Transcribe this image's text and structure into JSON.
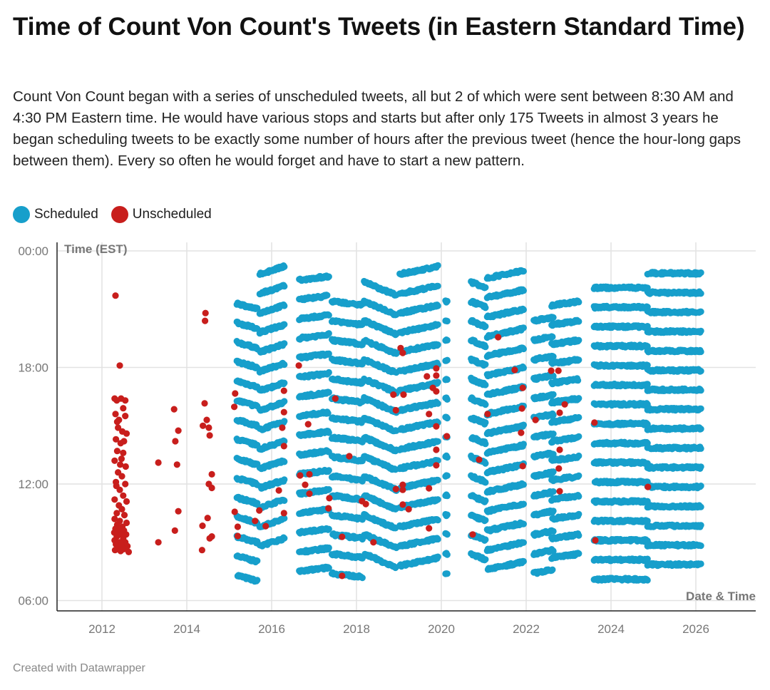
{
  "title": "Time of Count Von Count's Tweets (in Eastern Standard Time)",
  "subtitle": "Count Von Count began with a series of unscheduled tweets, all but 2 of which were sent between 8:30 AM and 4:30 PM Eastern time. He would have various stops and starts but after only 175 Tweets in almost 3 years he began scheduling tweets to be exactly some number of hours after the previous tweet (hence the hour-long gaps between them). Every so often he would forget and have to start a new pattern.",
  "footer": "Created with Datawrapper",
  "colors": {
    "scheduled": "#179fcb",
    "unscheduled": "#c81e1c",
    "grid": "#e2e2e2",
    "axis": "#222222",
    "label": "#777777"
  },
  "chart_data": {
    "type": "scatter",
    "xlabel": "Date & Time",
    "ylabel": "Time (EST)",
    "xlim": [
      2010.95,
      2027.45
    ],
    "ylim": [
      5.45,
      24
    ],
    "x_ticks": [
      {
        "value": 2012,
        "label": "2012"
      },
      {
        "value": 2014,
        "label": "2014"
      },
      {
        "value": 2016,
        "label": "2016"
      },
      {
        "value": 2018,
        "label": "2018"
      },
      {
        "value": 2020,
        "label": "2020"
      },
      {
        "value": 2022,
        "label": "2022"
      },
      {
        "value": 2024,
        "label": "2024"
      },
      {
        "value": 2026,
        "label": "2026"
      }
    ],
    "y_ticks": [
      {
        "value": 24,
        "label": "00:00"
      },
      {
        "value": 18,
        "label": "18:00"
      },
      {
        "value": 12,
        "label": "12:00"
      },
      {
        "value": 6,
        "label": "06:00"
      }
    ],
    "grid": true,
    "legend": {
      "placement": "top-left",
      "entries": [
        {
          "name": "Scheduled",
          "key": "scheduled"
        },
        {
          "name": "Unscheduled",
          "key": "unscheduled"
        }
      ]
    },
    "scheduled_blocks_note": "Scheduled tweets form hourly rows: each block spans [start,end] years with rows every hour from min_hour to max_hour; drift = hour change across the block",
    "scheduled_blocks": [
      {
        "start": 2015.18,
        "end": 2015.66,
        "min_hour": 7.3,
        "max_hour": 21.3,
        "drift": -0.3
      },
      {
        "start": 2015.72,
        "end": 2016.3,
        "min_hour": 8.8,
        "max_hour": 22.8,
        "drift": 0.4
      },
      {
        "start": 2016.65,
        "end": 2017.36,
        "min_hour": 7.5,
        "max_hour": 22.5,
        "drift": 0.2
      },
      {
        "start": 2017.42,
        "end": 2018.15,
        "min_hour": 7.4,
        "max_hour": 21.4,
        "drift": -0.2
      },
      {
        "start": 2018.18,
        "end": 2018.95,
        "min_hour": 8.4,
        "max_hour": 22.4,
        "drift": -0.7
      },
      {
        "start": 2019.02,
        "end": 2019.93,
        "min_hour": 7.8,
        "max_hour": 22.8,
        "drift": 0.4
      },
      {
        "start": 2020.1,
        "end": 2020.15,
        "min_hour": 7.4,
        "max_hour": 21.4,
        "drift": 0
      },
      {
        "start": 2020.7,
        "end": 2021.05,
        "min_hour": 8.4,
        "max_hour": 22.4,
        "drift": -0.3
      },
      {
        "start": 2021.08,
        "end": 2021.95,
        "min_hour": 7.6,
        "max_hour": 22.6,
        "drift": 0.4
      },
      {
        "start": 2022.18,
        "end": 2022.65,
        "min_hour": 7.4,
        "max_hour": 21.3,
        "drift": 0.2
      },
      {
        "start": 2022.6,
        "end": 2023.25,
        "min_hour": 8.2,
        "max_hour": 22.1,
        "drift": 0.2
      },
      {
        "start": 2023.6,
        "end": 2024.86,
        "min_hour": 7.1,
        "max_hour": 22.1,
        "drift": 0
      },
      {
        "start": 2024.86,
        "end": 2026.12,
        "min_hour": 7.85,
        "max_hour": 22.9,
        "drift": 0
      }
    ],
    "unscheduled": [
      [
        2012.32,
        21.7
      ],
      [
        2012.42,
        18.1
      ],
      [
        2012.3,
        16.4
      ],
      [
        2012.35,
        16.3
      ],
      [
        2012.45,
        16.4
      ],
      [
        2012.55,
        16.3
      ],
      [
        2012.5,
        15.9
      ],
      [
        2012.32,
        15.6
      ],
      [
        2012.4,
        15.3
      ],
      [
        2012.55,
        15.5
      ],
      [
        2012.38,
        14.9
      ],
      [
        2012.48,
        14.7
      ],
      [
        2012.58,
        14.6
      ],
      [
        2012.33,
        14.3
      ],
      [
        2012.44,
        14.1
      ],
      [
        2012.52,
        14.2
      ],
      [
        2012.36,
        13.7
      ],
      [
        2012.5,
        13.6
      ],
      [
        2012.3,
        13.2
      ],
      [
        2012.43,
        13.0
      ],
      [
        2012.56,
        12.9
      ],
      [
        2012.38,
        12.6
      ],
      [
        2012.47,
        12.4
      ],
      [
        2012.33,
        12.1
      ],
      [
        2012.55,
        12.0
      ],
      [
        2012.42,
        11.7
      ],
      [
        2012.5,
        11.4
      ],
      [
        2012.3,
        11.2
      ],
      [
        2012.58,
        11.1
      ],
      [
        2012.4,
        10.9
      ],
      [
        2012.47,
        10.7
      ],
      [
        2012.35,
        10.5
      ],
      [
        2012.53,
        10.4
      ],
      [
        2012.3,
        10.2
      ],
      [
        2012.42,
        10.1
      ],
      [
        2012.58,
        10.0
      ],
      [
        2012.36,
        9.9
      ],
      [
        2012.48,
        9.8
      ],
      [
        2012.32,
        9.7
      ],
      [
        2012.4,
        9.6
      ],
      [
        2012.52,
        9.6
      ],
      [
        2012.29,
        9.5
      ],
      [
        2012.45,
        9.4
      ],
      [
        2012.57,
        9.4
      ],
      [
        2012.35,
        9.3
      ],
      [
        2012.5,
        9.2
      ],
      [
        2012.3,
        9.1
      ],
      [
        2012.41,
        9.0
      ],
      [
        2012.55,
        9.0
      ],
      [
        2012.33,
        8.9
      ],
      [
        2012.46,
        8.85
      ],
      [
        2012.6,
        8.8
      ],
      [
        2012.38,
        8.7
      ],
      [
        2012.52,
        8.65
      ],
      [
        2012.31,
        8.6
      ],
      [
        2012.44,
        8.55
      ],
      [
        2012.63,
        8.5
      ],
      [
        2012.36,
        15.2
      ],
      [
        2012.46,
        13.3
      ],
      [
        2012.34,
        11.9
      ],
      [
        2013.33,
        13.1
      ],
      [
        2013.33,
        9.0
      ],
      [
        2013.7,
        15.85
      ],
      [
        2013.73,
        14.2
      ],
      [
        2013.72,
        9.6
      ],
      [
        2013.77,
        13.0
      ],
      [
        2013.8,
        10.6
      ],
      [
        2013.8,
        14.75
      ],
      [
        2014.44,
        20.8
      ],
      [
        2014.43,
        20.4
      ],
      [
        2014.42,
        16.15
      ],
      [
        2014.38,
        15.0
      ],
      [
        2014.47,
        15.3
      ],
      [
        2014.52,
        14.9
      ],
      [
        2014.54,
        14.5
      ],
      [
        2014.37,
        9.85
      ],
      [
        2014.49,
        10.25
      ],
      [
        2014.36,
        8.6
      ],
      [
        2014.59,
        12.5
      ],
      [
        2014.52,
        12.0
      ],
      [
        2014.59,
        11.8
      ],
      [
        2014.59,
        9.3
      ],
      [
        2014.54,
        9.2
      ],
      [
        2015.14,
        16.66
      ],
      [
        2015.12,
        15.97
      ],
      [
        2015.13,
        10.57
      ],
      [
        2015.2,
        9.8
      ],
      [
        2015.2,
        9.32
      ],
      [
        2015.61,
        10.1
      ],
      [
        2015.71,
        10.64
      ],
      [
        2015.86,
        9.83
      ],
      [
        2016.17,
        11.67
      ],
      [
        2016.29,
        16.8
      ],
      [
        2016.29,
        15.7
      ],
      [
        2016.25,
        14.9
      ],
      [
        2016.29,
        13.95
      ],
      [
        2016.29,
        10.5
      ],
      [
        2016.64,
        18.1
      ],
      [
        2016.67,
        12.44
      ],
      [
        2016.89,
        12.5
      ],
      [
        2016.79,
        11.96
      ],
      [
        2016.86,
        15.08
      ],
      [
        2016.89,
        11.5
      ],
      [
        2017.36,
        11.27
      ],
      [
        2017.34,
        10.75
      ],
      [
        2017.5,
        16.4
      ],
      [
        2017.66,
        9.28
      ],
      [
        2017.66,
        7.27
      ],
      [
        2017.83,
        13.43
      ],
      [
        2018.13,
        11.12
      ],
      [
        2018.22,
        10.97
      ],
      [
        2018.4,
        9.0
      ],
      [
        2019.04,
        19.0
      ],
      [
        2019.09,
        18.75
      ],
      [
        2019.8,
        16.95
      ],
      [
        2018.87,
        16.6
      ],
      [
        2019.11,
        16.6
      ],
      [
        2018.93,
        15.8
      ],
      [
        2018.93,
        11.74
      ],
      [
        2019.09,
        11.96
      ],
      [
        2019.09,
        11.7
      ],
      [
        2019.09,
        10.94
      ],
      [
        2019.23,
        10.7
      ],
      [
        2019.88,
        17.95
      ],
      [
        2019.66,
        17.54
      ],
      [
        2019.88,
        17.58
      ],
      [
        2019.88,
        16.77
      ],
      [
        2019.71,
        15.6
      ],
      [
        2019.88,
        14.97
      ],
      [
        2020.13,
        14.46
      ],
      [
        2019.88,
        13.76
      ],
      [
        2019.88,
        12.96
      ],
      [
        2019.71,
        11.78
      ],
      [
        2019.71,
        9.72
      ],
      [
        2021.34,
        19.56
      ],
      [
        2021.73,
        17.87
      ],
      [
        2021.92,
        16.95
      ],
      [
        2021.9,
        15.89
      ],
      [
        2021.09,
        15.6
      ],
      [
        2021.88,
        14.64
      ],
      [
        2020.89,
        13.25
      ],
      [
        2021.92,
        12.92
      ],
      [
        2020.74,
        9.4
      ],
      [
        2022.59,
        17.83
      ],
      [
        2022.76,
        17.83
      ],
      [
        2022.91,
        16.1
      ],
      [
        2022.79,
        15.67
      ],
      [
        2022.22,
        15.3
      ],
      [
        2022.79,
        13.76
      ],
      [
        2022.77,
        12.8
      ],
      [
        2022.79,
        11.63
      ],
      [
        2023.61,
        15.16
      ],
      [
        2023.63,
        9.1
      ],
      [
        2024.87,
        11.85
      ]
    ]
  }
}
